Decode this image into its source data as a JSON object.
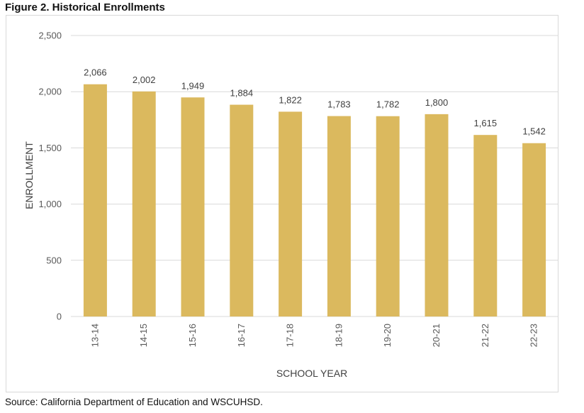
{
  "figure": {
    "title": "Figure 2. Historical Enrollments",
    "source": "Source: California Department of Education and WSCUHSD."
  },
  "chart_data": {
    "type": "bar",
    "title": "",
    "xlabel": "SCHOOL YEAR",
    "ylabel": "ENROLLMENT",
    "categories": [
      "13-14",
      "14-15",
      "15-16",
      "16-17",
      "17-18",
      "18-19",
      "19-20",
      "20-21",
      "21-22",
      "22-23"
    ],
    "values": [
      2066,
      2002,
      1949,
      1884,
      1822,
      1783,
      1782,
      1800,
      1615,
      1542
    ],
    "data_labels": [
      "2,066",
      "2,002",
      "1,949",
      "1,884",
      "1,822",
      "1,783",
      "1,782",
      "1,800",
      "1,615",
      "1,542"
    ],
    "yticks": [
      0,
      500,
      1000,
      1500,
      2000,
      2500
    ],
    "ytick_labels": [
      "0",
      "500",
      "1,000",
      "1,500",
      "2,000",
      "2,500"
    ],
    "ylim": [
      0,
      2500
    ],
    "grid": true,
    "legend": "none",
    "bar_color": "#dbb95e",
    "grid_color": "#d9d9d9"
  }
}
